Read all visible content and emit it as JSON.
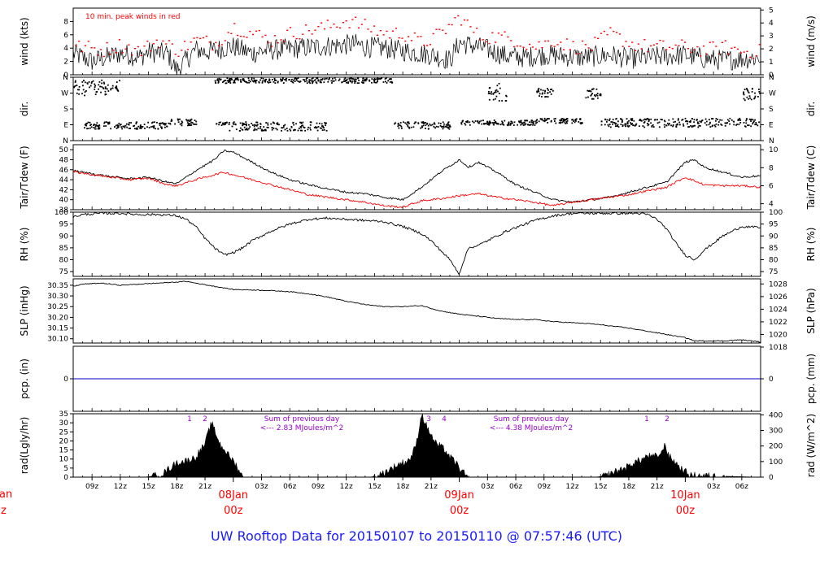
{
  "title": "UW Rooftop Data for 20150107  to  20150110 @ 07:57:46  (UTC)",
  "colors": {
    "title": "#1a1aff",
    "peak": "#ff0000",
    "dew": "#ff0000",
    "pcp": "#0000cc",
    "solar_note": "#9900cc",
    "day_label": "#ff0000"
  },
  "x_axis": {
    "range_hours": [
      7,
      80
    ],
    "ticks": [
      {
        "h": 9,
        "label": "09z"
      },
      {
        "h": 12,
        "label": "12z"
      },
      {
        "h": 15,
        "label": "15z"
      },
      {
        "h": 18,
        "label": "18z"
      },
      {
        "h": 21,
        "label": "21z"
      },
      {
        "h": 27,
        "label": "03z"
      },
      {
        "h": 30,
        "label": "06z"
      },
      {
        "h": 33,
        "label": "09z"
      },
      {
        "h": 36,
        "label": "12z"
      },
      {
        "h": 39,
        "label": "15z"
      },
      {
        "h": 42,
        "label": "18z"
      },
      {
        "h": 45,
        "label": "21z"
      },
      {
        "h": 51,
        "label": "03z"
      },
      {
        "h": 54,
        "label": "06z"
      },
      {
        "h": 57,
        "label": "09z"
      },
      {
        "h": 60,
        "label": "12z"
      },
      {
        "h": 63,
        "label": "15z"
      },
      {
        "h": 66,
        "label": "18z"
      },
      {
        "h": 69,
        "label": "21z"
      },
      {
        "h": 75,
        "label": "03z"
      },
      {
        "h": 78,
        "label": "06z"
      }
    ],
    "day_labels": [
      {
        "h": 24,
        "date": "08Jan",
        "time": "00z"
      },
      {
        "h": 48,
        "date": "09Jan",
        "time": "00z"
      },
      {
        "h": 72,
        "date": "10Jan",
        "time": "00z"
      }
    ],
    "edge_labels": {
      "date": "an",
      "time": "z"
    }
  },
  "chart_data": [
    {
      "type": "line",
      "id": "wind",
      "ylabel": "wind (kts)",
      "y2label": "wind (m/s)",
      "ylim": [
        0,
        10
      ],
      "yticks": [
        0,
        2,
        4,
        6,
        8
      ],
      "y2ticks": [
        {
          "v": 0,
          "y": 0
        },
        {
          "v": 1,
          "y": 1.944
        },
        {
          "v": 2,
          "y": 3.888
        },
        {
          "v": 3,
          "y": 5.832
        },
        {
          "v": 4,
          "y": 7.776
        },
        {
          "v": 5,
          "y": 9.72
        }
      ],
      "annotation": "10 min. peak winds in red",
      "series": [
        {
          "name": "wind speed",
          "x": [
            7,
            9,
            11,
            12,
            13,
            14,
            15,
            17,
            18,
            20,
            21,
            23,
            24,
            26,
            27,
            29,
            31,
            33,
            35,
            37,
            38,
            40,
            42,
            45,
            47,
            48,
            50,
            51,
            53,
            55,
            57,
            59,
            61,
            63,
            64,
            66,
            68,
            70,
            72,
            74,
            76,
            78,
            80
          ],
          "values": [
            3.2,
            2.0,
            2.8,
            3.2,
            3.0,
            2.6,
            3.4,
            3.2,
            0.6,
            3.8,
            3.4,
            4.0,
            4.2,
            3.2,
            3.6,
            3.8,
            4.0,
            4.2,
            4.4,
            4.6,
            4.2,
            4.0,
            3.6,
            3.0,
            2.2,
            4.8,
            4.2,
            3.8,
            2.8,
            2.6,
            3.0,
            2.8,
            2.6,
            2.8,
            3.0,
            2.4,
            2.6,
            2.8,
            3.0,
            2.4,
            2.2,
            2.4,
            2.6
          ]
        },
        {
          "name": "10 min. peak",
          "x": [
            8,
            10,
            12,
            14,
            16,
            18,
            20,
            22,
            24,
            26,
            28,
            30,
            32,
            34,
            36,
            38,
            40,
            42,
            44,
            46,
            48,
            50,
            52,
            54,
            56,
            58,
            60,
            62,
            64,
            66,
            68,
            70,
            72,
            74,
            76,
            78
          ],
          "values": [
            4.5,
            4.0,
            4.8,
            3.8,
            5.5,
            4.0,
            5.5,
            5.0,
            7.5,
            6.5,
            5.5,
            6.5,
            7.0,
            7.5,
            8.5,
            7.5,
            6.5,
            6.5,
            5.0,
            6.5,
            9.0,
            6.0,
            6.0,
            5.5,
            4.5,
            5.5,
            4.5,
            4.5,
            6.5,
            5.0,
            4.5,
            4.5,
            4.5,
            4.0,
            4.5,
            3.8
          ]
        }
      ]
    },
    {
      "type": "scatter",
      "id": "dir",
      "ylabel": "dir.",
      "y2label": "dir.",
      "ylim": [
        0,
        360
      ],
      "yticks": [
        {
          "v": 0,
          "label": "N"
        },
        {
          "v": 90,
          "label": "E"
        },
        {
          "v": 180,
          "label": "S"
        },
        {
          "v": 270,
          "label": "W"
        },
        {
          "v": 360,
          "label": "N"
        }
      ],
      "clusters": [
        {
          "x": [
            7,
            12
          ],
          "y": [
            260,
            350
          ]
        },
        {
          "x": [
            8,
            17
          ],
          "y": [
            70,
            110
          ]
        },
        {
          "x": [
            17,
            20
          ],
          "y": [
            90,
            130
          ]
        },
        {
          "x": [
            22,
            23.5
          ],
          "y": [
            90,
            110
          ]
        },
        {
          "x": [
            23.5,
            34
          ],
          "y": [
            60,
            110
          ]
        },
        {
          "x": [
            22,
            41
          ],
          "y": [
            330,
            360
          ]
        },
        {
          "x": [
            41,
            47
          ],
          "y": [
            70,
            110
          ]
        },
        {
          "x": [
            48,
            56
          ],
          "y": [
            90,
            120
          ]
        },
        {
          "x": [
            56,
            61
          ],
          "y": [
            100,
            130
          ]
        },
        {
          "x": [
            51,
            53
          ],
          "y": [
            230,
            330
          ]
        },
        {
          "x": [
            56,
            58
          ],
          "y": [
            250,
            300
          ]
        },
        {
          "x": [
            61,
            63
          ],
          "y": [
            240,
            300
          ]
        },
        {
          "x": [
            63,
            80
          ],
          "y": [
            80,
            130
          ]
        },
        {
          "x": [
            78,
            80
          ],
          "y": [
            230,
            300
          ]
        }
      ]
    },
    {
      "type": "line",
      "id": "temp",
      "ylabel": "Tair/Tdew (F)",
      "y2label": "Tair/Tdew (C)",
      "ylim": [
        38,
        51
      ],
      "yticks": [
        38,
        40,
        42,
        44,
        46,
        48,
        50
      ],
      "y2ticks": [
        {
          "v": 4,
          "y": 39.2
        },
        {
          "v": 6,
          "y": 42.8
        },
        {
          "v": 8,
          "y": 46.4
        },
        {
          "v": 10,
          "y": 50.0
        }
      ],
      "series": [
        {
          "name": "Tair",
          "x": [
            7,
            9,
            11,
            13,
            15,
            17,
            18,
            20,
            22,
            23,
            24,
            26,
            28,
            30,
            32,
            34,
            36,
            38,
            40,
            42,
            44,
            46,
            48,
            49,
            50,
            52,
            54,
            56,
            58,
            60,
            62,
            64,
            66,
            68,
            70,
            71,
            72,
            73,
            74,
            76,
            78,
            80
          ],
          "values": [
            45.8,
            45.2,
            44.6,
            44.2,
            44.5,
            43.5,
            43.2,
            45.8,
            48.0,
            49.8,
            49.5,
            47.5,
            45.5,
            44.0,
            43.0,
            42.2,
            41.5,
            41.2,
            40.5,
            40.0,
            42.5,
            45.5,
            48.0,
            46.5,
            47.5,
            45.5,
            43.0,
            41.5,
            40.0,
            39.5,
            40.0,
            40.5,
            41.5,
            42.5,
            43.5,
            45.5,
            47.5,
            48.0,
            46.5,
            45.5,
            44.5,
            44.8
          ]
        },
        {
          "name": "Tdew",
          "x": [
            7,
            9,
            11,
            13,
            15,
            17,
            18,
            20,
            22,
            23,
            24,
            26,
            28,
            30,
            32,
            34,
            36,
            38,
            40,
            42,
            44,
            46,
            48,
            50,
            52,
            54,
            56,
            58,
            60,
            62,
            64,
            66,
            68,
            70,
            71,
            72,
            74,
            76,
            78,
            80
          ],
          "values": [
            45.6,
            45.0,
            44.5,
            44.0,
            44.3,
            43.0,
            42.8,
            44.0,
            45.0,
            45.5,
            45.0,
            44.0,
            43.0,
            42.0,
            41.0,
            40.5,
            40.0,
            39.5,
            38.8,
            38.5,
            39.8,
            40.2,
            40.8,
            41.2,
            40.5,
            40.0,
            39.5,
            38.8,
            39.5,
            40.0,
            40.5,
            41.0,
            41.8,
            42.5,
            43.5,
            44.5,
            43.0,
            42.8,
            42.8,
            42.5
          ]
        }
      ]
    },
    {
      "type": "line",
      "id": "rh",
      "ylabel": "RH (%)",
      "y2label": "RH (%)",
      "ylim": [
        73,
        100
      ],
      "yticks": [
        75,
        80,
        85,
        90,
        95,
        100
      ],
      "series": [
        {
          "name": "RH",
          "x": [
            7,
            8,
            10,
            12,
            14,
            16,
            18,
            19,
            20,
            21,
            22,
            23,
            24,
            25,
            26,
            28,
            30,
            32,
            34,
            36,
            38,
            40,
            42,
            44,
            45,
            46,
            47,
            47.5,
            48,
            48.5,
            49,
            50,
            51,
            52,
            53,
            54,
            56,
            58,
            60,
            62,
            64,
            66,
            67,
            68,
            69,
            70,
            71,
            72,
            73,
            74,
            76,
            78,
            80
          ],
          "values": [
            98,
            99,
            99.5,
            99.5,
            99,
            99,
            98.5,
            97,
            94,
            89,
            85,
            82,
            83,
            85,
            88,
            92,
            95,
            97,
            97.5,
            97,
            96.5,
            96,
            94,
            91,
            88,
            84,
            80,
            77,
            74,
            80,
            85,
            86,
            88,
            90,
            92,
            93.5,
            96.5,
            98.5,
            99.5,
            99.5,
            99.5,
            99.5,
            99.5,
            99,
            97,
            93,
            87,
            82,
            80,
            84,
            90,
            94,
            93.5
          ]
        }
      ]
    },
    {
      "type": "line",
      "id": "slp",
      "ylabel": "SLP (inHg)",
      "y2label": "SLP (hPa)",
      "ylim": [
        30.08,
        30.38
      ],
      "yticks": [
        30.1,
        30.15,
        30.2,
        30.25,
        30.3,
        30.35
      ],
      "y2ticks": [
        {
          "v": 1018,
          "y": 30.061
        },
        {
          "v": 1020,
          "y": 30.12
        },
        {
          "v": 1022,
          "y": 30.179
        },
        {
          "v": 1024,
          "y": 30.238
        },
        {
          "v": 1026,
          "y": 30.297
        },
        {
          "v": 1028,
          "y": 30.356
        }
      ],
      "series": [
        {
          "name": "SLP",
          "x": [
            7,
            8,
            10,
            12,
            14,
            16,
            18,
            19,
            20,
            22,
            24,
            26,
            28,
            30,
            32,
            34,
            36,
            38,
            40,
            42,
            44,
            46,
            48,
            50,
            52,
            54,
            56,
            58,
            60,
            62,
            64,
            66,
            68,
            70,
            72,
            73,
            74,
            76,
            78,
            80
          ],
          "values": [
            30.345,
            30.355,
            30.36,
            30.35,
            30.355,
            30.36,
            30.365,
            30.368,
            30.36,
            30.345,
            30.33,
            30.328,
            30.325,
            30.32,
            30.31,
            30.295,
            30.275,
            30.26,
            30.25,
            30.25,
            30.255,
            30.23,
            30.215,
            30.205,
            30.195,
            30.19,
            30.19,
            30.18,
            30.175,
            30.17,
            30.16,
            30.15,
            30.135,
            30.12,
            30.105,
            30.09,
            30.09,
            30.09,
            30.095,
            30.085
          ]
        }
      ]
    },
    {
      "type": "line",
      "id": "pcp",
      "ylabel": "pcp. (in)",
      "y2label": "pcp. (mm)",
      "ylim": [
        -1,
        1
      ],
      "yticks": [
        0
      ],
      "y2ticks": [
        {
          "v": 0,
          "y": 0
        }
      ],
      "series": [
        {
          "name": "precip",
          "x": [
            7,
            80
          ],
          "values": [
            0,
            0
          ]
        }
      ]
    },
    {
      "type": "area",
      "id": "rad",
      "ylabel": "rad(Lgly/hr)",
      "y2label": "rad (W/m^2)",
      "ylim": [
        0,
        35
      ],
      "yticks": [
        0,
        5,
        10,
        15,
        20,
        25,
        30,
        35
      ],
      "y2ticks": [
        {
          "v": 0,
          "y": 0
        },
        {
          "v": 100,
          "y": 8.6
        },
        {
          "v": 200,
          "y": 17.2
        },
        {
          "v": 300,
          "y": 25.8
        },
        {
          "v": 400,
          "y": 34.4
        }
      ],
      "series": [
        {
          "name": "solar radiation",
          "x": [
            7,
            14.5,
            15.5,
            16.5,
            17,
            17.5,
            18,
            18.5,
            19,
            19.5,
            20,
            20.5,
            21,
            21.3,
            21.7,
            22,
            22.3,
            22.7,
            23,
            23.5,
            24,
            24.5,
            24.8,
            25,
            38.5,
            39.5,
            40.5,
            41.5,
            42.5,
            43,
            43.5,
            44,
            44.3,
            44.7,
            45,
            45.3,
            45.7,
            46,
            46.5,
            47,
            47.5,
            48,
            48.5,
            49,
            62.5,
            63.5,
            64.5,
            65.5,
            66,
            66.5,
            67,
            67.5,
            68,
            68.5,
            69,
            69.5,
            69.8,
            70.2,
            70.6,
            71,
            71.5,
            72,
            72.5,
            80
          ],
          "values": [
            0,
            0,
            0.6,
            2,
            4,
            6,
            8,
            8.5,
            9,
            10,
            11,
            15,
            18,
            24,
            30,
            26,
            22,
            17,
            16,
            12,
            9,
            5,
            2,
            0,
            0,
            1,
            4,
            7,
            9,
            12,
            20,
            35,
            31,
            26,
            24,
            20,
            18,
            17,
            15,
            11,
            9,
            5,
            2,
            0,
            0,
            0.8,
            3,
            5,
            6,
            8,
            9,
            10,
            12,
            11,
            12,
            13,
            19,
            12,
            10,
            8,
            5,
            3,
            1,
            0
          ]
        }
      ],
      "hour_marks": [
        "1",
        "2",
        "3",
        "4",
        "1",
        "2"
      ],
      "notes": [
        {
          "line1": "Sum of previous day",
          "line2": "<--- 2.83 MJoules/m^2"
        },
        {
          "line1": "Sum of previous day",
          "line2": "<--- 4.38 MJoules/m^2"
        }
      ]
    }
  ]
}
